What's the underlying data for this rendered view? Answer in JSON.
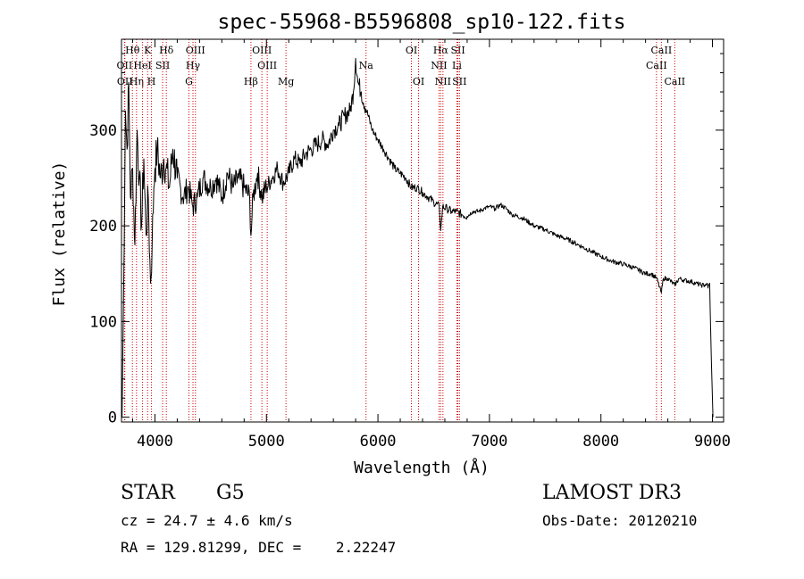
{
  "chart_data": {
    "type": "line",
    "title": "spec-55968-B5596808_sp10-122.fits",
    "xlabel": "Wavelength (Å)",
    "ylabel": "Flux (relative)",
    "xlim": [
      3700,
      9100
    ],
    "ylim": [
      -5,
      395
    ],
    "x_ticks": [
      4000,
      5000,
      6000,
      7000,
      8000,
      9000
    ],
    "x_tick_labels": [
      "4000",
      "5000",
      "6000",
      "7000",
      "8000",
      "9000"
    ],
    "y_ticks": [
      0,
      100,
      200,
      300
    ],
    "y_tick_labels": [
      "0",
      "100",
      "200",
      "300"
    ],
    "grid": false,
    "line_color": "#000000",
    "marker_color": "#cc0000",
    "series": [
      {
        "name": "spectrum",
        "x": [
          3705,
          3720,
          3735,
          3750,
          3765,
          3780,
          3800,
          3820,
          3840,
          3860,
          3880,
          3900,
          3920,
          3940,
          3960,
          3975,
          3990,
          4000,
          4020,
          4050,
          4080,
          4100,
          4130,
          4160,
          4200,
          4250,
          4300,
          4340,
          4380,
          4430,
          4500,
          4550,
          4600,
          4650,
          4700,
          4750,
          4800,
          4850,
          4861,
          4880,
          4920,
          4960,
          5000,
          5050,
          5100,
          5150,
          5200,
          5250,
          5300,
          5350,
          5400,
          5450,
          5500,
          5550,
          5600,
          5650,
          5700,
          5750,
          5780,
          5800,
          5820,
          5850,
          5900,
          5950,
          6000,
          6050,
          6100,
          6150,
          6200,
          6250,
          6300,
          6350,
          6400,
          6450,
          6500,
          6550,
          6563,
          6580,
          6620,
          6660,
          6700,
          6750,
          6800,
          6850,
          6900,
          6950,
          7000,
          7050,
          7100,
          7150,
          7200,
          7300,
          7400,
          7500,
          7600,
          7700,
          7800,
          7900,
          8000,
          8100,
          8200,
          8300,
          8400,
          8450,
          8500,
          8542,
          8560,
          8600,
          8662,
          8700,
          8750,
          8800,
          8850,
          8900,
          8930,
          8950,
          8960,
          8975,
          8990,
          9000,
          9005
        ],
        "y": [
          0,
          140,
          320,
          280,
          350,
          230,
          260,
          180,
          300,
          250,
          200,
          270,
          190,
          230,
          140,
          180,
          240,
          260,
          280,
          250,
          270,
          260,
          240,
          280,
          250,
          230,
          240,
          220,
          230,
          250,
          240,
          250,
          230,
          255,
          240,
          250,
          240,
          230,
          190,
          230,
          255,
          230,
          240,
          250,
          260,
          245,
          255,
          270,
          265,
          275,
          280,
          285,
          290,
          285,
          300,
          305,
          315,
          320,
          340,
          375,
          350,
          340,
          320,
          300,
          290,
          280,
          270,
          260,
          255,
          250,
          240,
          240,
          235,
          230,
          225,
          220,
          195,
          220,
          218,
          215,
          215,
          212,
          210,
          215,
          215,
          218,
          220,
          218,
          222,
          218,
          212,
          208,
          200,
          196,
          190,
          186,
          180,
          174,
          168,
          163,
          160,
          156,
          150,
          150,
          145,
          130,
          145,
          145,
          138,
          145,
          143,
          142,
          140,
          138,
          138,
          140,
          135,
          140,
          60,
          20,
          0
        ]
      }
    ],
    "line_markers": [
      {
        "label": "Hθ",
        "x": 3798,
        "row": 0
      },
      {
        "label": "OII",
        "x": 3727,
        "row": 1
      },
      {
        "label": "OII",
        "x": 3730,
        "row": 2
      },
      {
        "label": "Hη",
        "x": 3835,
        "row": 2
      },
      {
        "label": "HeI",
        "x": 3889,
        "row": 1
      },
      {
        "label": "K",
        "x": 3934,
        "row": 0
      },
      {
        "label": "H",
        "x": 3969,
        "row": 2
      },
      {
        "label": "SII",
        "x": 4069,
        "row": 1
      },
      {
        "label": "Hδ",
        "x": 4102,
        "row": 0
      },
      {
        "label": "OIII",
        "x": 4363,
        "row": 0
      },
      {
        "label": "Hγ",
        "x": 4341,
        "row": 1
      },
      {
        "label": "G",
        "x": 4305,
        "row": 2
      },
      {
        "label": "Hβ",
        "x": 4861,
        "row": 2
      },
      {
        "label": "OIII",
        "x": 4959,
        "row": 0
      },
      {
        "label": "OIII",
        "x": 5007,
        "row": 1
      },
      {
        "label": "Mg",
        "x": 5175,
        "row": 2
      },
      {
        "label": "Na",
        "x": 5893,
        "row": 1
      },
      {
        "label": "OI",
        "x": 6300,
        "row": 0
      },
      {
        "label": "OI",
        "x": 6364,
        "row": 2
      },
      {
        "label": "Hα",
        "x": 6563,
        "row": 0
      },
      {
        "label": "NII",
        "x": 6548,
        "row": 1
      },
      {
        "label": "NII",
        "x": 6583,
        "row": 2
      },
      {
        "label": "SII",
        "x": 6717,
        "row": 0
      },
      {
        "label": "Li",
        "x": 6708,
        "row": 1
      },
      {
        "label": "SII",
        "x": 6731,
        "row": 2
      },
      {
        "label": "CaII",
        "x": 8542,
        "row": 0
      },
      {
        "label": "CaII",
        "x": 8498,
        "row": 1
      },
      {
        "label": "CaII",
        "x": 8662,
        "row": 2
      }
    ]
  },
  "info": {
    "object_class": "STAR",
    "subclass": "G5",
    "survey": "LAMOST DR3",
    "cz_line": "cz = 24.7 ± 4.6 km/s",
    "obs_date_line": "Obs-Date: 20120210",
    "coords_line": "RA = 129.81299, DEC =    2.22247"
  }
}
